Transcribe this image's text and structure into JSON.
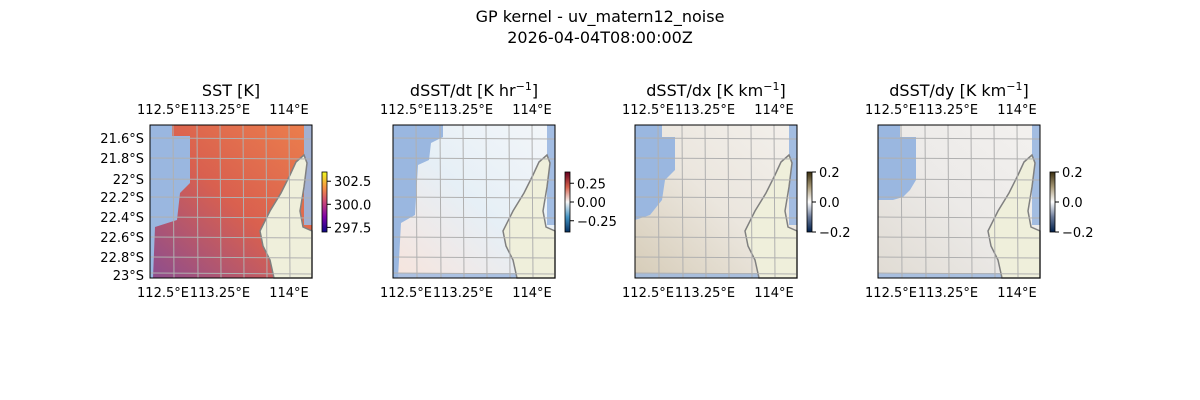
{
  "figure": {
    "title": "GP kernel - uv_matern12_noise",
    "subtitle": "2026-04-04T08:00:00Z"
  },
  "chart_data": {
    "type": "heatmap",
    "panels": [
      {
        "title": "SST [K]",
        "title_sup": "",
        "x_ticks": [
          "112.5°E",
          "113.25°E",
          "114°E"
        ],
        "y_ticks": [
          "21.6°S",
          "21.8°S",
          "22°S",
          "22.2°S",
          "22.4°S",
          "22.6°S",
          "22.8°S",
          "23°S"
        ],
        "colormap": "plasma",
        "colorbar_ticks": [
          "302.5",
          "300.0",
          "297.5"
        ],
        "colorbar_range": [
          297,
          303.5
        ],
        "ocean_colors": [
          "#ec7f4c",
          "#d9604f",
          "#8c4d8f"
        ]
      },
      {
        "title": "dSST/dt [K hr",
        "title_sup": "−1",
        "x_ticks": [
          "112.5°E",
          "113.25°E",
          "114°E"
        ],
        "y_ticks": [],
        "colormap": "RdBu_r",
        "colorbar_ticks": [
          "0.25",
          "0.00",
          "−0.25"
        ],
        "colorbar_range": [
          -0.4,
          0.4
        ],
        "ocean_colors": [
          "#f3f6f9",
          "#e6eff6",
          "#f7e4dc"
        ]
      },
      {
        "title": "dSST/dx [K km",
        "title_sup": "−1",
        "x_ticks": [
          "112.5°E",
          "113.25°E",
          "114°E"
        ],
        "y_ticks": [],
        "colormap": "cividis-diverging",
        "colorbar_ticks": [
          "0.2",
          "0.0",
          "−0.2"
        ],
        "colorbar_range": [
          -0.2,
          0.2
        ],
        "ocean_colors": [
          "#f3f0ec",
          "#ebe6de",
          "#d6ccb8"
        ]
      },
      {
        "title": "dSST/dy [K km",
        "title_sup": "−1",
        "x_ticks": [
          "112.5°E",
          "113.25°E",
          "114°E"
        ],
        "y_ticks": [],
        "colormap": "cividis-diverging",
        "colorbar_ticks": [
          "0.2",
          "0.0",
          "−0.2"
        ],
        "colorbar_range": [
          -0.2,
          0.2
        ],
        "ocean_colors": [
          "#f3f1ef",
          "#eceae8",
          "#e0dbd3"
        ]
      }
    ],
    "land_color": "#efefdb",
    "masked_color": "#9ab7e0",
    "grid": true
  }
}
